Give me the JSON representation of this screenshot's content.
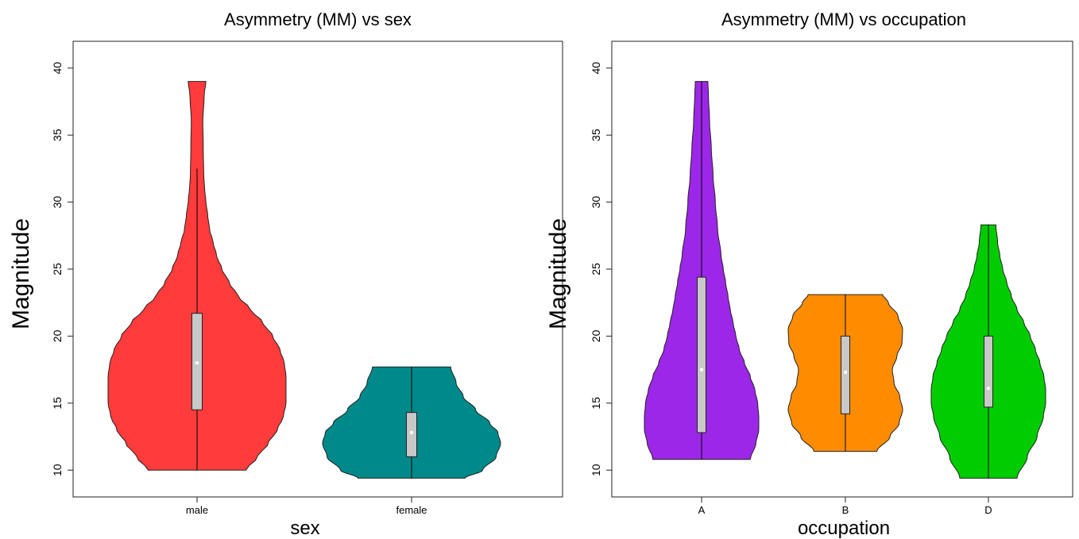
{
  "chart_data": [
    {
      "type": "violin",
      "title": "Asymmetry (MM) vs sex",
      "xlabel": "sex",
      "ylabel": "Magnitude",
      "ylim": [
        8,
        42
      ],
      "yticks": [
        10,
        15,
        20,
        25,
        30,
        35,
        40
      ],
      "categories": [
        "male",
        "female"
      ],
      "groups": [
        {
          "category": "male",
          "color": "#ff3b3b",
          "min": 10.0,
          "max": 39.0,
          "q1": 14.5,
          "median": 18.0,
          "q3": 21.7,
          "whisker_low": 10.0,
          "whisker_high": 32.5,
          "density": [
            [
              10,
              0.55
            ],
            [
              11,
              0.68
            ],
            [
              12,
              0.8
            ],
            [
              13,
              0.9
            ],
            [
              14,
              0.97
            ],
            [
              15,
              1.0
            ],
            [
              16,
              1.0
            ],
            [
              17,
              1.0
            ],
            [
              18,
              0.98
            ],
            [
              19,
              0.93
            ],
            [
              20,
              0.85
            ],
            [
              21,
              0.74
            ],
            [
              22,
              0.6
            ],
            [
              23,
              0.46
            ],
            [
              24,
              0.36
            ],
            [
              25,
              0.28
            ],
            [
              26,
              0.22
            ],
            [
              27,
              0.18
            ],
            [
              28,
              0.14
            ],
            [
              29,
              0.12
            ],
            [
              30,
              0.1
            ],
            [
              31,
              0.085
            ],
            [
              32,
              0.075
            ],
            [
              34,
              0.07
            ],
            [
              36,
              0.065
            ],
            [
              38,
              0.08
            ],
            [
              39,
              0.1
            ]
          ]
        },
        {
          "category": "female",
          "color": "#00898a",
          "min": 9.4,
          "max": 17.7,
          "q1": 11.0,
          "median": 12.8,
          "q3": 14.3,
          "whisker_low": 9.4,
          "whisker_high": 17.7,
          "density": [
            [
              9.4,
              0.6
            ],
            [
              10,
              0.8
            ],
            [
              11,
              0.95
            ],
            [
              12,
              1.0
            ],
            [
              12.8,
              0.97
            ],
            [
              13.5,
              0.88
            ],
            [
              14.5,
              0.72
            ],
            [
              15.5,
              0.58
            ],
            [
              16.5,
              0.5
            ],
            [
              17.7,
              0.44
            ]
          ]
        }
      ]
    },
    {
      "type": "violin",
      "title": "Asymmetry (MM) vs occupation",
      "xlabel": "occupation",
      "ylabel": "Magnitude",
      "ylim": [
        8,
        42
      ],
      "yticks": [
        10,
        15,
        20,
        25,
        30,
        35,
        40
      ],
      "categories": [
        "A",
        "B",
        "D"
      ],
      "groups": [
        {
          "category": "A",
          "color": "#9d27e8",
          "min": 10.8,
          "max": 39.0,
          "q1": 12.8,
          "median": 17.5,
          "q3": 24.4,
          "whisker_low": 10.8,
          "whisker_high": 39.0,
          "density": [
            [
              10.8,
              0.85
            ],
            [
              12,
              0.95
            ],
            [
              13,
              1.0
            ],
            [
              14,
              1.0
            ],
            [
              15,
              0.98
            ],
            [
              16,
              0.93
            ],
            [
              17,
              0.85
            ],
            [
              18,
              0.75
            ],
            [
              19,
              0.66
            ],
            [
              20,
              0.6
            ],
            [
              21,
              0.55
            ],
            [
              22,
              0.5
            ],
            [
              23,
              0.46
            ],
            [
              24,
              0.42
            ],
            [
              25,
              0.38
            ],
            [
              26,
              0.34
            ],
            [
              28,
              0.28
            ],
            [
              30,
              0.24
            ],
            [
              32,
              0.2
            ],
            [
              34,
              0.17
            ],
            [
              36,
              0.14
            ],
            [
              38,
              0.12
            ],
            [
              39,
              0.11
            ]
          ]
        },
        {
          "category": "B",
          "color": "#ff8c00",
          "min": 11.4,
          "max": 23.1,
          "q1": 14.2,
          "median": 17.3,
          "q3": 20.0,
          "whisker_low": 11.4,
          "whisker_high": 23.1,
          "density": [
            [
              11.4,
              0.55
            ],
            [
              12.5,
              0.78
            ],
            [
              13.5,
              0.94
            ],
            [
              14.5,
              1.0
            ],
            [
              15.5,
              0.95
            ],
            [
              16.5,
              0.85
            ],
            [
              17.5,
              0.82
            ],
            [
              18.5,
              0.9
            ],
            [
              19.5,
              0.99
            ],
            [
              20.5,
              1.0
            ],
            [
              21.5,
              0.92
            ],
            [
              22.5,
              0.75
            ],
            [
              23.1,
              0.65
            ]
          ]
        },
        {
          "category": "D",
          "color": "#00cc00",
          "min": 9.4,
          "max": 28.3,
          "q1": 14.7,
          "median": 16.1,
          "q3": 20.0,
          "whisker_low": 9.4,
          "whisker_high": 28.3,
          "density": [
            [
              9.4,
              0.5
            ],
            [
              11,
              0.68
            ],
            [
              12.5,
              0.85
            ],
            [
              14,
              0.96
            ],
            [
              15,
              1.0
            ],
            [
              16,
              1.0
            ],
            [
              17,
              0.97
            ],
            [
              18,
              0.9
            ],
            [
              19,
              0.82
            ],
            [
              20,
              0.73
            ],
            [
              21,
              0.62
            ],
            [
              22,
              0.5
            ],
            [
              23,
              0.4
            ],
            [
              24,
              0.32
            ],
            [
              25,
              0.25
            ],
            [
              26,
              0.2
            ],
            [
              27,
              0.16
            ],
            [
              28.3,
              0.13
            ]
          ]
        }
      ]
    }
  ]
}
